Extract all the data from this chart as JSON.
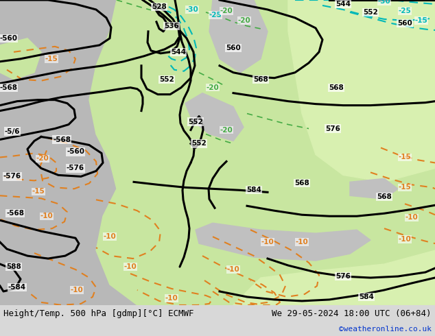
{
  "title_left": "Height/Temp. 500 hPa [gdmp][°C] ECMWF",
  "title_right": "We 29-05-2024 18:00 UTC (06+84)",
  "credit": "©weatheronline.co.uk",
  "land_green": "#c8e6a0",
  "land_green_light": "#d8f0b0",
  "land_grey": "#b8b8b8",
  "sea_grey": "#c0c0c0",
  "bottom_bar": "#d8d8d8",
  "z500_color": "#000000",
  "temp_cyan_color": "#00b8b8",
  "temp_green_color": "#44aa44",
  "temp_neg_color": "#e08020",
  "credit_color": "#0033cc",
  "figsize": [
    6.34,
    4.9
  ],
  "dpi": 100
}
